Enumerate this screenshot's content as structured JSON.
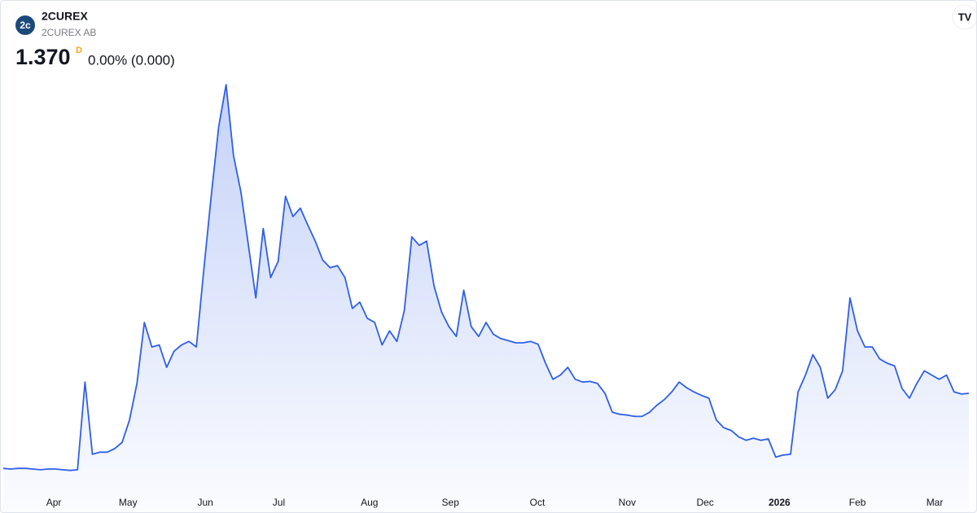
{
  "header": {
    "symbol": "2CUREX",
    "company": "2CUREX AB",
    "logo": "2c",
    "last_price": "1.370",
    "interval": "D",
    "change": "0.00% (0.000)"
  },
  "chart_data": {
    "type": "area",
    "series": [
      {
        "name": "2CUREX",
        "color": "#2f5fe8",
        "values": [
          0.3,
          0.29,
          0.3,
          0.3,
          0.29,
          0.28,
          0.29,
          0.29,
          0.28,
          0.27,
          0.28,
          1.53,
          0.5,
          0.53,
          0.53,
          0.58,
          0.67,
          0.99,
          1.51,
          2.38,
          2.03,
          2.06,
          1.74,
          1.97,
          2.06,
          2.11,
          2.03,
          3.13,
          4.18,
          5.17,
          5.77,
          4.76,
          4.24,
          3.48,
          2.73,
          3.72,
          3.02,
          3.25,
          4.18,
          3.89,
          4.01,
          3.77,
          3.54,
          3.27,
          3.16,
          3.19,
          3.02,
          2.58,
          2.67,
          2.44,
          2.38,
          2.06,
          2.26,
          2.11,
          2.55,
          3.6,
          3.48,
          3.54,
          2.9,
          2.53,
          2.32,
          2.18,
          2.84,
          2.32,
          2.18,
          2.38,
          2.21,
          2.15,
          2.12,
          2.09,
          2.09,
          2.11,
          2.07,
          1.8,
          1.57,
          1.63,
          1.74,
          1.57,
          1.53,
          1.54,
          1.51,
          1.37,
          1.1,
          1.07,
          1.06,
          1.04,
          1.04,
          1.1,
          1.2,
          1.28,
          1.39,
          1.53,
          1.45,
          1.39,
          1.34,
          1.3,
          0.99,
          0.88,
          0.84,
          0.75,
          0.7,
          0.73,
          0.7,
          0.72,
          0.46,
          0.49,
          0.5,
          1.39,
          1.63,
          1.92,
          1.74,
          1.3,
          1.42,
          1.69,
          2.73,
          2.26,
          2.03,
          2.03,
          1.86,
          1.8,
          1.76,
          1.44,
          1.3,
          1.51,
          1.69,
          1.63,
          1.57,
          1.63,
          1.39,
          1.36,
          1.37
        ]
      }
    ],
    "ylim": [
      0,
      6.0
    ],
    "xlim": [
      0,
      130
    ],
    "xticks": [
      {
        "value": 6.8,
        "label": "Apr"
      },
      {
        "value": 16.8,
        "label": "May"
      },
      {
        "value": 27.2,
        "label": "Jun"
      },
      {
        "value": 37.1,
        "label": "Jul"
      },
      {
        "value": 49.3,
        "label": "Aug"
      },
      {
        "value": 60.2,
        "label": "Sep"
      },
      {
        "value": 71.9,
        "label": "Oct"
      },
      {
        "value": 84.0,
        "label": "Nov"
      },
      {
        "value": 94.5,
        "label": "Dec"
      },
      {
        "value": 104.5,
        "label": "2026"
      },
      {
        "value": 115.0,
        "label": "Feb"
      },
      {
        "value": 125.4,
        "label": "Mar"
      }
    ]
  }
}
